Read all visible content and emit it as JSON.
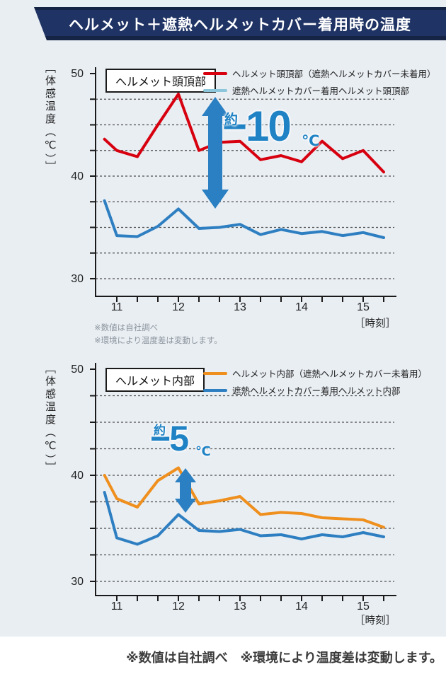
{
  "banner": {
    "title": "ヘルメット＋遮熱ヘルメットカバー着用時の温度"
  },
  "colors": {
    "background": "#e9eef3",
    "banner": "#1f3364",
    "annotation": "#1f82c4",
    "arrow": "#2a80c2",
    "grid": "#4d4d4d",
    "axis": "#1a1a1a",
    "red_line": "#d7000f",
    "skyblue_legend": "#8cc6da",
    "blue_line": "#2e7fc1",
    "orange_line": "#ef8f1d",
    "note_gray": "#8b949c"
  },
  "charts": [
    {
      "box_label": "ヘルメット頭頂部",
      "y_axis_label": "［体感温度（℃）］",
      "x_axis_label": "［時刻］",
      "legend": [
        {
          "label": "ヘルメット頭頂部（遮熱ヘルメットカバー未着用）",
          "color": "#d7000f"
        },
        {
          "label": "遮熱ヘルメットカバー着用ヘルメット頭頂部",
          "color": "#8cc6da"
        }
      ],
      "annotation": {
        "approx": "約",
        "value": "−10",
        "unit": "℃"
      },
      "notes": [
        "※数値は自社調べ",
        "※環境により温度差は変動します。"
      ]
    },
    {
      "box_label": "ヘルメット内部",
      "y_axis_label": "［体感温度（℃）］",
      "x_axis_label": "［時刻］",
      "legend": [
        {
          "label": "ヘルメット内部（遮熱ヘルメットカバー未着用）",
          "color": "#ef8f1d"
        },
        {
          "label": "遮熱ヘルメットカバー着用ヘルメット内部",
          "color": "#2e7fc1"
        }
      ],
      "annotation": {
        "approx": "約",
        "value": "−5",
        "unit": "℃"
      }
    }
  ],
  "footer": "※数値は自社調べ　※環境により温度差は変動します。",
  "chart_data": [
    {
      "type": "line",
      "title": "ヘルメット頭頂部",
      "xlabel": "時刻",
      "ylabel": "体感温度（℃）",
      "ylim": [
        30,
        50
      ],
      "y_grid_step": 2.5,
      "x_hours": [
        10.8,
        11,
        11.333,
        11.667,
        12,
        12.333,
        12.667,
        13,
        13.333,
        13.667,
        14,
        14.333,
        14.667,
        15,
        15.333
      ],
      "x_ticks": [
        11,
        12,
        13,
        14,
        15
      ],
      "y_ticks": [
        30,
        40,
        50
      ],
      "series": [
        {
          "name": "ヘルメット頭頂部（遮熱ヘルメットカバー未着用）",
          "color": "#d7000f",
          "values": [
            43.6,
            42.5,
            41.9,
            45.0,
            48.0,
            42.5,
            43.3,
            43.4,
            41.6,
            42.0,
            41.4,
            43.4,
            41.7,
            42.5,
            40.4
          ]
        },
        {
          "name": "遮熱ヘルメットカバー着用ヘルメット頭頂部",
          "color": "#2e7fc1",
          "values": [
            37.6,
            34.2,
            34.1,
            35.1,
            36.8,
            34.9,
            35.0,
            35.3,
            34.3,
            34.8,
            34.4,
            34.6,
            34.2,
            34.5,
            34.0
          ]
        }
      ],
      "annotation": "約−10℃"
    },
    {
      "type": "line",
      "title": "ヘルメット内部",
      "xlabel": "時刻",
      "ylabel": "体感温度（℃）",
      "ylim": [
        30,
        50
      ],
      "y_grid_step": 2.5,
      "x_hours": [
        10.8,
        11,
        11.333,
        11.667,
        12,
        12.333,
        12.667,
        13,
        13.333,
        13.667,
        14,
        14.333,
        14.667,
        15,
        15.333
      ],
      "x_ticks": [
        11,
        12,
        13,
        14,
        15
      ],
      "y_ticks": [
        30,
        40,
        50
      ],
      "series": [
        {
          "name": "ヘルメット内部（遮熱ヘルメットカバー未着用）",
          "color": "#ef8f1d",
          "values": [
            40.0,
            37.8,
            37.0,
            39.5,
            40.7,
            37.3,
            37.6,
            38.0,
            36.3,
            36.5,
            36.4,
            36.0,
            35.9,
            35.8,
            35.1
          ]
        },
        {
          "name": "遮熱ヘルメットカバー着用ヘルメット内部",
          "color": "#2e7fc1",
          "values": [
            38.4,
            34.1,
            33.5,
            34.3,
            36.3,
            34.8,
            34.7,
            34.9,
            34.3,
            34.4,
            34.0,
            34.4,
            34.2,
            34.6,
            34.2
          ]
        }
      ],
      "annotation": "約−5℃"
    }
  ]
}
